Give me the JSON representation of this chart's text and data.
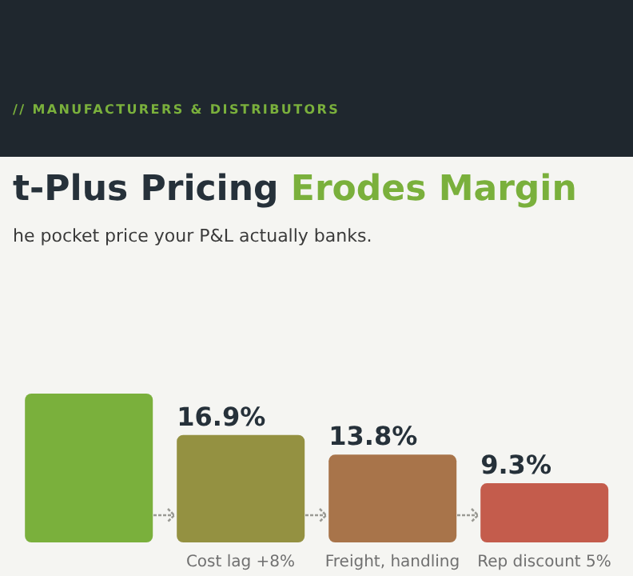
{
  "chart_data": {
    "type": "bar",
    "title": "t-Plus Pricing Erodes Margin",
    "subtitle": "he pocket price your P&L actually banks.",
    "annotations": [
      "// MANUFACTURERS & DISTRIBUTORS"
    ],
    "categories": [
      null,
      "Cost lag +8%",
      "Freight, handling",
      "Rep discount 5%"
    ],
    "values": [
      23.4,
      16.9,
      13.8,
      9.3
    ],
    "colors": [
      "#7ab03c",
      "#949141",
      "#a8744a",
      "#c45c4c"
    ],
    "value_labels": [
      null,
      "16.9%",
      "13.8%",
      "9.3%"
    ]
  }
}
